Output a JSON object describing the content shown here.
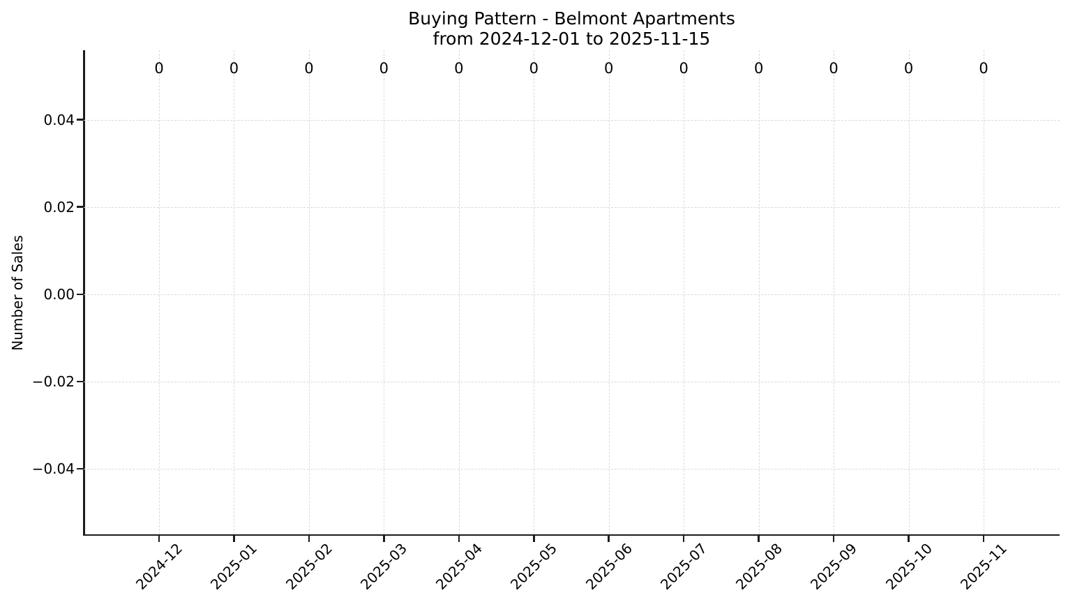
{
  "chart_data": {
    "type": "bar",
    "title": "Buying Pattern - Belmont Apartments",
    "subtitle": "from 2024-12-01 to 2025-11-15",
    "ylabel": "Number of Sales",
    "xlabel": "",
    "categories": [
      "2024-12",
      "2025-01",
      "2025-02",
      "2025-03",
      "2025-04",
      "2025-05",
      "2025-06",
      "2025-07",
      "2025-08",
      "2025-09",
      "2025-10",
      "2025-11"
    ],
    "values": [
      0,
      0,
      0,
      0,
      0,
      0,
      0,
      0,
      0,
      0,
      0,
      0
    ],
    "bar_value_labels": [
      "0",
      "0",
      "0",
      "0",
      "0",
      "0",
      "0",
      "0",
      "0",
      "0",
      "0",
      "0"
    ],
    "yticks": [
      0.04,
      0.02,
      0.0,
      -0.02,
      -0.04
    ],
    "ytick_labels": [
      "0.04",
      "0.02",
      "0.00",
      "−0.02",
      "−0.04"
    ],
    "ylim": [
      -0.055,
      0.0559
    ],
    "xtick_rotation": 45,
    "grid": true,
    "grid_linestyle": "dashed",
    "legend_visible": false,
    "colors": {
      "text": "#000000",
      "spine": "#1c1c1c",
      "grid": "#d9d9d9",
      "background": "#ffffff"
    }
  }
}
